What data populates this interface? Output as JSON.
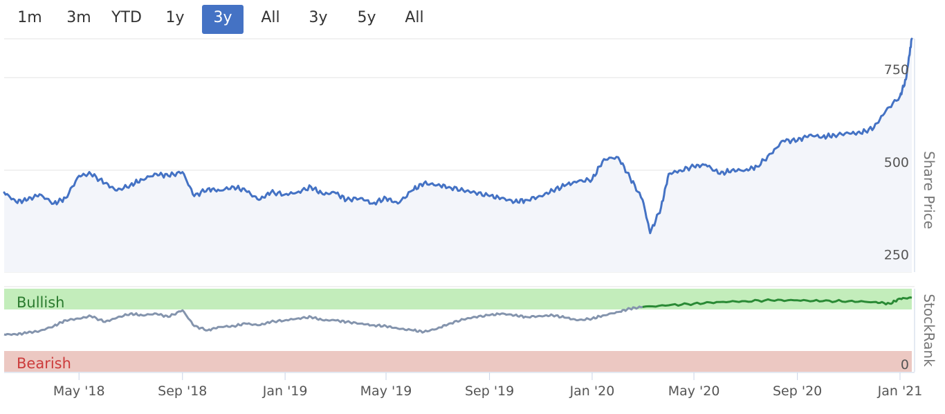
{
  "range_selector": {
    "buttons": [
      {
        "label": "1m",
        "active": false
      },
      {
        "label": "3m",
        "active": false
      },
      {
        "label": "YTD",
        "active": false
      },
      {
        "label": "1y",
        "active": false
      },
      {
        "label": "3y",
        "active": true
      },
      {
        "label": "All",
        "active": false
      },
      {
        "label": "3y",
        "active": false
      },
      {
        "label": "5y",
        "active": false
      },
      {
        "label": "All",
        "active": false
      }
    ]
  },
  "colors": {
    "price_line": "#4472c4",
    "price_fill": "#f3f5fa",
    "rank_line_gray": "#8494ad",
    "rank_line_green": "#2a8a35",
    "bullish_zone": "#c3edbb",
    "bearish_zone": "#ecc8c2",
    "bullish_text": "#2a7a2e",
    "bearish_text": "#cc3b3b",
    "grid": "#e3e3e3",
    "active_button": "#4472c4"
  },
  "chart_data": [
    {
      "type": "area",
      "ylabel": "Share Price",
      "y_ticks": [
        250,
        500,
        750
      ],
      "ylim": [
        225,
        855
      ],
      "x_ticks": [
        "May '18",
        "Sep '18",
        "Jan '19",
        "May '19",
        "Sep '19",
        "Jan '20",
        "May '20",
        "Sep '20",
        "Jan '21"
      ],
      "grid": true,
      "x": [
        "2018-02-01",
        "2018-02-15",
        "2018-03-01",
        "2018-03-15",
        "2018-04-01",
        "2018-04-15",
        "2018-05-01",
        "2018-05-15",
        "2018-06-01",
        "2018-06-15",
        "2018-07-01",
        "2018-07-15",
        "2018-08-01",
        "2018-08-15",
        "2018-09-01",
        "2018-09-15",
        "2018-10-01",
        "2018-10-15",
        "2018-11-01",
        "2018-11-15",
        "2018-12-01",
        "2018-12-15",
        "2019-01-01",
        "2019-01-15",
        "2019-02-01",
        "2019-02-15",
        "2019-03-01",
        "2019-03-15",
        "2019-04-01",
        "2019-04-15",
        "2019-05-01",
        "2019-05-15",
        "2019-06-01",
        "2019-06-15",
        "2019-07-01",
        "2019-07-15",
        "2019-08-01",
        "2019-08-15",
        "2019-09-01",
        "2019-09-15",
        "2019-10-01",
        "2019-10-15",
        "2019-11-01",
        "2019-11-15",
        "2019-12-01",
        "2019-12-15",
        "2020-01-01",
        "2020-01-15",
        "2020-02-01",
        "2020-02-15",
        "2020-03-01",
        "2020-03-10",
        "2020-03-23",
        "2020-04-01",
        "2020-04-15",
        "2020-05-01",
        "2020-05-15",
        "2020-06-01",
        "2020-06-15",
        "2020-07-01",
        "2020-07-15",
        "2020-08-01",
        "2020-08-15",
        "2020-09-01",
        "2020-09-15",
        "2020-10-01",
        "2020-10-15",
        "2020-11-01",
        "2020-11-15",
        "2020-12-01",
        "2020-12-15",
        "2021-01-01",
        "2021-01-08",
        "2021-01-12",
        "2021-01-15"
      ],
      "series": [
        {
          "values": [
            440,
            415,
            420,
            435,
            410,
            425,
            485,
            490,
            465,
            445,
            460,
            475,
            490,
            485,
            495,
            430,
            450,
            445,
            455,
            445,
            420,
            440,
            435,
            440,
            455,
            435,
            440,
            420,
            425,
            410,
            425,
            410,
            445,
            465,
            460,
            455,
            445,
            440,
            430,
            425,
            415,
            420,
            430,
            445,
            460,
            470,
            475,
            530,
            535,
            480,
            420,
            330,
            400,
            490,
            500,
            510,
            515,
            490,
            500,
            500,
            510,
            545,
            580,
            580,
            595,
            590,
            595,
            600,
            600,
            615,
            660,
            700,
            745,
            810,
            855
          ]
        }
      ]
    },
    {
      "type": "line",
      "ylabel": "StockRank",
      "y_ticks": [
        0
      ],
      "ylim": [
        0,
        100
      ],
      "zones": [
        {
          "label": "Bullish",
          "from": 75,
          "to": 100
        },
        {
          "label": "Bearish",
          "from": 0,
          "to": 25
        }
      ],
      "x": [
        "2018-02-01",
        "2018-02-15",
        "2018-03-01",
        "2018-03-15",
        "2018-04-01",
        "2018-04-15",
        "2018-05-01",
        "2018-05-15",
        "2018-06-01",
        "2018-06-15",
        "2018-07-01",
        "2018-07-15",
        "2018-08-01",
        "2018-08-15",
        "2018-09-01",
        "2018-09-15",
        "2018-10-01",
        "2018-10-15",
        "2018-11-01",
        "2018-11-15",
        "2018-12-01",
        "2018-12-15",
        "2019-01-01",
        "2019-01-15",
        "2019-02-01",
        "2019-02-15",
        "2019-03-01",
        "2019-03-15",
        "2019-04-01",
        "2019-04-15",
        "2019-05-01",
        "2019-05-15",
        "2019-06-01",
        "2019-06-15",
        "2019-07-01",
        "2019-07-15",
        "2019-08-01",
        "2019-08-15",
        "2019-09-01",
        "2019-09-15",
        "2019-10-01",
        "2019-10-15",
        "2019-11-01",
        "2019-11-15",
        "2019-12-01",
        "2019-12-15",
        "2020-01-01",
        "2020-01-15",
        "2020-02-01",
        "2020-02-15",
        "2020-03-01",
        "2020-04-01",
        "2020-05-01",
        "2020-06-01",
        "2020-07-01",
        "2020-08-01",
        "2020-09-01",
        "2020-10-01",
        "2020-11-01",
        "2020-12-01",
        "2020-12-20",
        "2021-01-01",
        "2021-01-15"
      ],
      "series": [
        {
          "values": [
            45,
            45,
            47,
            49,
            55,
            62,
            64,
            67,
            60,
            65,
            70,
            68,
            70,
            66,
            74,
            55,
            50,
            54,
            55,
            58,
            56,
            60,
            62,
            64,
            66,
            62,
            62,
            60,
            58,
            56,
            55,
            52,
            50,
            48,
            52,
            58,
            63,
            66,
            68,
            70,
            68,
            66,
            67,
            68,
            65,
            62,
            64,
            68,
            72,
            76,
            78,
            80,
            82,
            84,
            85,
            86,
            86,
            85,
            85,
            84,
            82,
            88,
            89
          ]
        }
      ]
    }
  ]
}
